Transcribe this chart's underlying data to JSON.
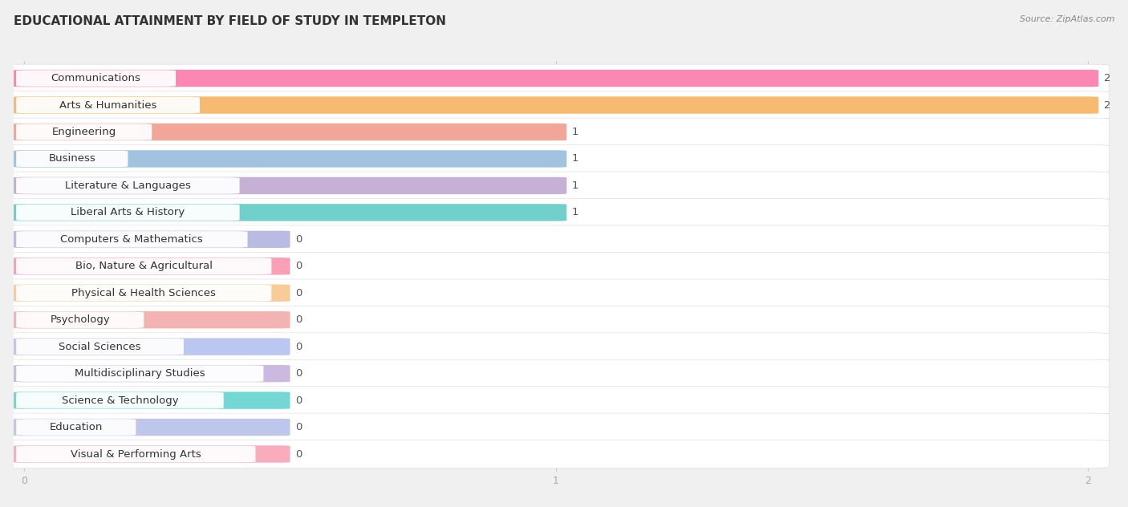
{
  "title": "EDUCATIONAL ATTAINMENT BY FIELD OF STUDY IN TEMPLETON",
  "source": "Source: ZipAtlas.com",
  "categories": [
    "Communications",
    "Arts & Humanities",
    "Engineering",
    "Business",
    "Literature & Languages",
    "Liberal Arts & History",
    "Computers & Mathematics",
    "Bio, Nature & Agricultural",
    "Physical & Health Sciences",
    "Psychology",
    "Social Sciences",
    "Multidisciplinary Studies",
    "Science & Technology",
    "Education",
    "Visual & Performing Arts"
  ],
  "values": [
    2,
    2,
    1,
    1,
    1,
    1,
    0,
    0,
    0,
    0,
    0,
    0,
    0,
    0,
    0
  ],
  "colors": [
    "#F96BA0",
    "#F5A94E",
    "#EF9080",
    "#8BB4D8",
    "#B89CCB",
    "#4DC5BF",
    "#A8AADC",
    "#F888A4",
    "#F5C080",
    "#F0A0A0",
    "#AAB8EE",
    "#C0A8D8",
    "#50CFCA",
    "#B0B8E8",
    "#F898AA"
  ],
  "xlim": [
    0,
    2
  ],
  "xticks": [
    0,
    1,
    2
  ],
  "background_color": "#f0f0f0",
  "row_bg_color": "#ffffff",
  "title_fontsize": 11,
  "label_fontsize": 9.5,
  "value_fontsize": 9.5
}
